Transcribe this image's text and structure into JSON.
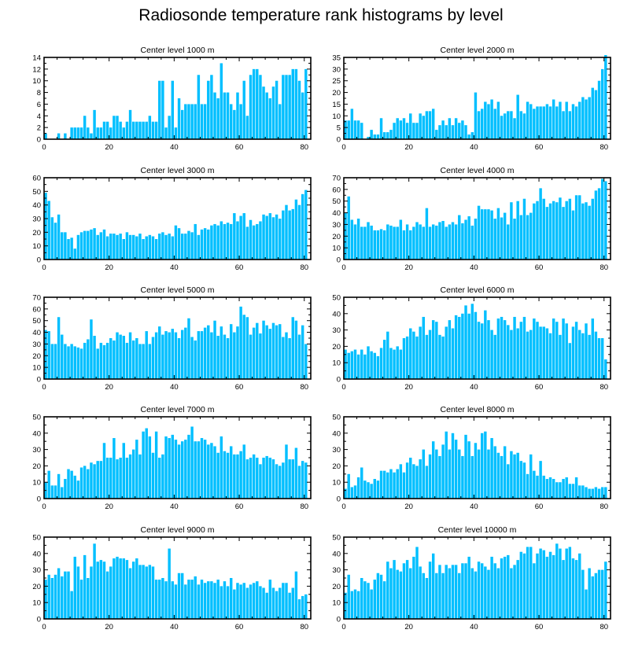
{
  "title": "Radiosonde temperature rank histograms by level",
  "bar_color": "#00bfff",
  "frame_color": "#000000",
  "chart_data": [
    {
      "type": "bar",
      "title": "Center level 1000 m",
      "xlim": [
        0,
        82
      ],
      "xticks": [
        0,
        20,
        40,
        60,
        80
      ],
      "ylim": [
        0,
        14
      ],
      "yticks": [
        0,
        2,
        4,
        6,
        8,
        10,
        12,
        14
      ],
      "values": [
        1,
        0,
        0,
        0,
        1,
        0,
        1,
        0,
        2,
        2,
        2,
        2,
        4,
        2,
        1,
        5,
        2,
        2,
        3,
        3,
        2,
        4,
        4,
        3,
        2,
        3,
        5,
        3,
        3,
        3,
        3,
        3,
        4,
        3,
        3,
        10,
        10,
        2,
        4,
        10,
        2,
        7,
        5,
        6,
        6,
        6,
        6,
        11,
        6,
        6,
        10,
        11,
        8,
        7,
        13,
        8,
        8,
        6,
        5,
        8,
        6,
        10,
        4,
        11,
        12,
        12,
        11,
        9,
        8,
        7,
        9,
        10,
        6,
        11,
        11,
        11,
        12,
        12,
        10,
        8,
        12
      ]
    },
    {
      "type": "bar",
      "title": "Center level 2000 m",
      "xlim": [
        0,
        82
      ],
      "xticks": [
        0,
        20,
        40,
        60,
        80
      ],
      "ylim": [
        0,
        35
      ],
      "yticks": [
        0,
        5,
        10,
        15,
        20,
        25,
        30,
        35
      ],
      "values": [
        8,
        8,
        13,
        8,
        8,
        7,
        0,
        1,
        4,
        2,
        2,
        9,
        3,
        3,
        4,
        7,
        9,
        8,
        9,
        7,
        11,
        7,
        7,
        11,
        10,
        12,
        12,
        13,
        4,
        6,
        8,
        6,
        9,
        6,
        9,
        7,
        8,
        6,
        2,
        3,
        20,
        12,
        13,
        16,
        15,
        17,
        13,
        16,
        10,
        11,
        12,
        12,
        9,
        19,
        12,
        11,
        16,
        15,
        13,
        14,
        14,
        14,
        15,
        14,
        17,
        14,
        16,
        12,
        16,
        12,
        15,
        14,
        16,
        18,
        17,
        18,
        22,
        21,
        25,
        30,
        36
      ]
    },
    {
      "type": "bar",
      "title": "Center level 3000 m",
      "xlim": [
        0,
        82
      ],
      "xticks": [
        0,
        20,
        40,
        60,
        80
      ],
      "ylim": [
        0,
        60
      ],
      "yticks": [
        0,
        10,
        20,
        30,
        40,
        50,
        60
      ],
      "values": [
        49,
        43,
        31,
        27,
        33,
        20,
        20,
        15,
        16,
        8,
        18,
        20,
        21,
        21,
        22,
        23,
        18,
        20,
        22,
        17,
        19,
        19,
        18,
        19,
        15,
        20,
        18,
        18,
        17,
        19,
        15,
        17,
        18,
        17,
        15,
        19,
        20,
        18,
        19,
        17,
        25,
        23,
        19,
        19,
        21,
        20,
        26,
        18,
        22,
        23,
        22,
        25,
        26,
        25,
        28,
        26,
        27,
        26,
        34,
        28,
        32,
        34,
        24,
        29,
        25,
        26,
        28,
        33,
        32,
        34,
        31,
        33,
        30,
        36,
        40,
        36,
        37,
        44,
        40,
        48,
        51
      ]
    },
    {
      "type": "bar",
      "title": "Center level 4000 m",
      "xlim": [
        0,
        82
      ],
      "xticks": [
        0,
        20,
        40,
        60,
        80
      ],
      "ylim": [
        0,
        70
      ],
      "yticks": [
        0,
        10,
        20,
        30,
        40,
        50,
        60,
        70
      ],
      "values": [
        40,
        54,
        34,
        30,
        35,
        28,
        28,
        32,
        29,
        25,
        25,
        26,
        25,
        30,
        29,
        28,
        28,
        34,
        25,
        30,
        25,
        28,
        32,
        30,
        28,
        44,
        28,
        30,
        29,
        32,
        33,
        28,
        30,
        32,
        30,
        38,
        31,
        34,
        37,
        29,
        35,
        46,
        43,
        43,
        43,
        42,
        35,
        44,
        36,
        40,
        30,
        49,
        35,
        50,
        38,
        52,
        38,
        40,
        48,
        50,
        61,
        52,
        45,
        48,
        50,
        49,
        53,
        45,
        50,
        52,
        42,
        55,
        55,
        48,
        49,
        46,
        52,
        59,
        61,
        69,
        67
      ]
    },
    {
      "type": "bar",
      "title": "Center level 5000 m",
      "xlim": [
        0,
        82
      ],
      "xticks": [
        0,
        20,
        40,
        60,
        80
      ],
      "ylim": [
        0,
        70
      ],
      "yticks": [
        0,
        10,
        20,
        30,
        40,
        50,
        60,
        70
      ],
      "values": [
        42,
        41,
        30,
        30,
        53,
        38,
        30,
        28,
        30,
        28,
        27,
        26,
        31,
        34,
        51,
        37,
        26,
        31,
        29,
        31,
        35,
        33,
        40,
        38,
        37,
        31,
        40,
        33,
        35,
        30,
        30,
        41,
        30,
        36,
        40,
        45,
        38,
        41,
        40,
        43,
        40,
        35,
        42,
        44,
        52,
        36,
        33,
        41,
        41,
        44,
        46,
        40,
        50,
        37,
        45,
        38,
        35,
        47,
        40,
        45,
        62,
        55,
        53,
        38,
        44,
        48,
        39,
        50,
        46,
        43,
        48,
        46,
        47,
        36,
        40,
        35,
        53,
        50,
        38,
        46,
        30
      ]
    },
    {
      "type": "bar",
      "title": "Center level 6000 m",
      "xlim": [
        0,
        82
      ],
      "xticks": [
        0,
        20,
        40,
        60,
        80
      ],
      "ylim": [
        0,
        50
      ],
      "yticks": [
        0,
        10,
        20,
        30,
        40,
        50
      ],
      "values": [
        18,
        16,
        17,
        18,
        15,
        18,
        15,
        20,
        17,
        16,
        14,
        19,
        24,
        29,
        19,
        18,
        20,
        18,
        25,
        26,
        31,
        29,
        26,
        32,
        38,
        27,
        30,
        36,
        35,
        27,
        26,
        32,
        36,
        31,
        39,
        38,
        40,
        45,
        40,
        46,
        41,
        35,
        34,
        42,
        36,
        30,
        27,
        37,
        38,
        36,
        33,
        30,
        38,
        31,
        35,
        38,
        29,
        30,
        37,
        35,
        32,
        32,
        31,
        28,
        37,
        35,
        27,
        37,
        34,
        22,
        32,
        35,
        30,
        28,
        34,
        27,
        37,
        29,
        25,
        25,
        12
      ]
    },
    {
      "type": "bar",
      "title": "Center level 7000 m",
      "xlim": [
        0,
        82
      ],
      "xticks": [
        0,
        20,
        40,
        60,
        80
      ],
      "ylim": [
        0,
        50
      ],
      "yticks": [
        0,
        10,
        20,
        30,
        40,
        50
      ],
      "values": [
        10,
        17,
        8,
        8,
        15,
        7,
        12,
        18,
        17,
        14,
        11,
        19,
        20,
        18,
        22,
        21,
        23,
        23,
        34,
        25,
        25,
        37,
        24,
        25,
        34,
        25,
        27,
        30,
        36,
        27,
        41,
        43,
        38,
        28,
        41,
        25,
        27,
        38,
        37,
        39,
        36,
        33,
        35,
        36,
        39,
        44,
        35,
        35,
        37,
        36,
        33,
        34,
        32,
        28,
        38,
        29,
        28,
        32,
        27,
        27,
        29,
        33,
        24,
        25,
        27,
        25,
        21,
        25,
        26,
        25,
        24,
        21,
        20,
        22,
        33,
        24,
        24,
        31,
        20,
        23,
        22
      ]
    },
    {
      "type": "bar",
      "title": "Center level 8000 m",
      "xlim": [
        0,
        82
      ],
      "xticks": [
        0,
        20,
        40,
        60,
        80
      ],
      "ylim": [
        0,
        50
      ],
      "yticks": [
        0,
        10,
        20,
        30,
        40,
        50
      ],
      "values": [
        6,
        15,
        7,
        8,
        13,
        19,
        11,
        10,
        9,
        12,
        11,
        17,
        17,
        16,
        18,
        16,
        18,
        21,
        16,
        22,
        25,
        21,
        20,
        24,
        30,
        20,
        27,
        35,
        30,
        26,
        33,
        41,
        30,
        40,
        36,
        30,
        26,
        39,
        35,
        26,
        34,
        30,
        40,
        41,
        30,
        37,
        32,
        28,
        26,
        32,
        21,
        29,
        27,
        28,
        23,
        22,
        15,
        27,
        17,
        14,
        23,
        14,
        12,
        13,
        12,
        10,
        10,
        12,
        13,
        9,
        9,
        13,
        8,
        8,
        7,
        6,
        6,
        7,
        6,
        7,
        7
      ]
    },
    {
      "type": "bar",
      "title": "Center level 9000 m",
      "xlim": [
        0,
        82
      ],
      "xticks": [
        0,
        20,
        40,
        60,
        80
      ],
      "ylim": [
        0,
        50
      ],
      "yticks": [
        0,
        10,
        20,
        30,
        40,
        50
      ],
      "values": [
        24,
        27,
        25,
        27,
        31,
        26,
        29,
        29,
        17,
        38,
        32,
        24,
        39,
        25,
        32,
        46,
        35,
        36,
        35,
        29,
        32,
        37,
        38,
        37,
        37,
        36,
        31,
        35,
        37,
        33,
        33,
        32,
        33,
        32,
        24,
        24,
        25,
        23,
        43,
        23,
        21,
        28,
        28,
        21,
        24,
        24,
        26,
        21,
        24,
        22,
        23,
        23,
        22,
        24,
        20,
        23,
        20,
        25,
        18,
        22,
        21,
        22,
        19,
        21,
        22,
        23,
        20,
        19,
        16,
        24,
        19,
        17,
        19,
        22,
        22,
        16,
        19,
        29,
        12,
        14,
        15
      ]
    },
    {
      "type": "bar",
      "title": "Center level 10000 m",
      "xlim": [
        0,
        82
      ],
      "xticks": [
        0,
        20,
        40,
        60,
        80
      ],
      "ylim": [
        0,
        50
      ],
      "yticks": [
        0,
        10,
        20,
        30,
        40,
        50
      ],
      "values": [
        16,
        27,
        17,
        18,
        17,
        25,
        23,
        22,
        18,
        24,
        28,
        27,
        23,
        35,
        31,
        36,
        30,
        29,
        34,
        36,
        31,
        38,
        44,
        32,
        28,
        25,
        35,
        40,
        28,
        33,
        28,
        33,
        31,
        33,
        33,
        28,
        34,
        34,
        38,
        31,
        29,
        35,
        34,
        32,
        30,
        38,
        34,
        31,
        37,
        38,
        39,
        31,
        33,
        36,
        41,
        40,
        44,
        44,
        34,
        40,
        43,
        42,
        38,
        41,
        39,
        46,
        43,
        36,
        43,
        44,
        37,
        36,
        40,
        30,
        18,
        31,
        26,
        28,
        30,
        30,
        35
      ]
    }
  ]
}
